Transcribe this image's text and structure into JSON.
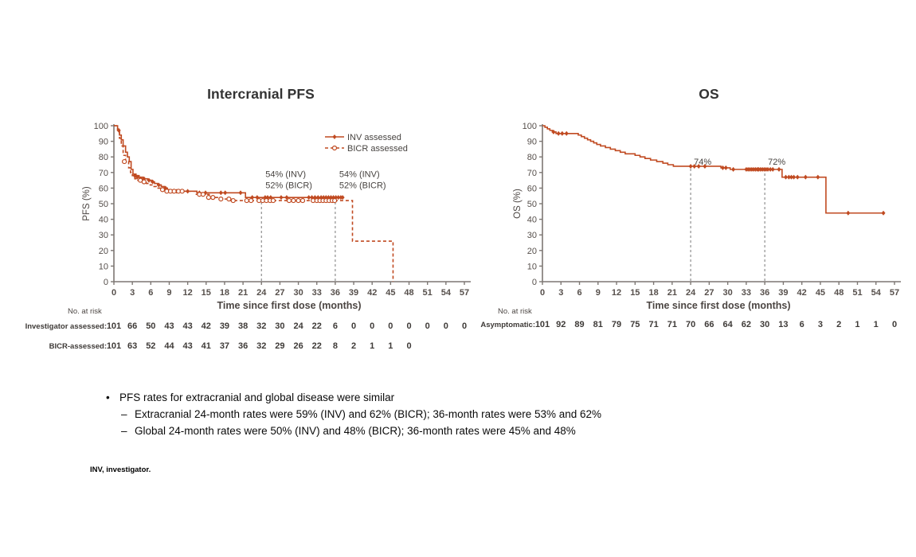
{
  "colors": {
    "curve": "#c04a21",
    "axis": "#7d7773",
    "tick_text": "#564f4b",
    "label_text": "#4c4643",
    "title_text": "#333333",
    "annotation_text": "#474340",
    "refline": "#8f8f8f",
    "risk_text": "#3e3a37",
    "note_text": "#0a0a0a"
  },
  "chart_data": [
    {
      "id": "pfs",
      "type": "line",
      "subtype": "kaplan-meier-step",
      "title": "Intercranial PFS",
      "xlabel": "Time since first dose (months)",
      "ylabel": "PFS (%)",
      "xmax": 57,
      "ylim": [
        0,
        100
      ],
      "grid": false,
      "xticks": [
        0,
        3,
        6,
        9,
        12,
        15,
        18,
        21,
        24,
        27,
        30,
        33,
        36,
        39,
        42,
        45,
        48,
        51,
        54,
        57
      ],
      "yticks": [
        0,
        10,
        20,
        30,
        40,
        50,
        60,
        70,
        80,
        90,
        100
      ],
      "reflines": [
        {
          "x": 24,
          "top_pct": 53
        },
        {
          "x": 36,
          "top_pct": 53
        }
      ],
      "annotations": [
        {
          "x": 24,
          "dx": 5,
          "y_pct": 67,
          "lines": [
            "54% (INV)",
            "52% (BICR)"
          ]
        },
        {
          "x": 36,
          "dx": 5,
          "y_pct": 67,
          "lines": [
            "54% (INV)",
            "52% (BICR)"
          ]
        }
      ],
      "legend": {
        "show": true,
        "position": "top-right"
      },
      "series": [
        {
          "name": "INV assessed",
          "line": "solid",
          "marker": "diamond",
          "end": 37.2,
          "steps": [
            [
              0,
              100
            ],
            [
              0.6,
              97
            ],
            [
              0.9,
              94
            ],
            [
              1.2,
              91
            ],
            [
              1.5,
              87
            ],
            [
              1.9,
              83
            ],
            [
              2.2,
              80
            ],
            [
              2.5,
              77
            ],
            [
              2.8,
              72
            ],
            [
              3.1,
              69
            ],
            [
              3.6,
              68
            ],
            [
              4.1,
              67
            ],
            [
              4.7,
              66
            ],
            [
              5.5,
              65
            ],
            [
              6.1,
              64
            ],
            [
              6.6,
              63
            ],
            [
              7.1,
              62
            ],
            [
              7.7,
              61
            ],
            [
              8.2,
              60
            ],
            [
              8.7,
              59
            ],
            [
              9.3,
              58
            ],
            [
              13.5,
              57
            ],
            [
              21.4,
              54
            ]
          ],
          "censors": [
            [
              0.8,
              97
            ],
            [
              3.4,
              68
            ],
            [
              3.8,
              67
            ],
            [
              4.3,
              66
            ],
            [
              4.9,
              66
            ],
            [
              5.7,
              65
            ],
            [
              6.3,
              64
            ],
            [
              7.3,
              62
            ],
            [
              8.4,
              60
            ],
            [
              9.6,
              58
            ],
            [
              10.2,
              58
            ],
            [
              12.0,
              58
            ],
            [
              13.9,
              57
            ],
            [
              14.9,
              57
            ],
            [
              17.4,
              57
            ],
            [
              18.1,
              57
            ],
            [
              20.6,
              57
            ],
            [
              22.5,
              54
            ],
            [
              23.3,
              54
            ],
            [
              24.6,
              54
            ],
            [
              25.0,
              54
            ],
            [
              25.5,
              54
            ],
            [
              27.2,
              54
            ],
            [
              28.1,
              54
            ],
            [
              31.7,
              54
            ],
            [
              32.2,
              54
            ],
            [
              32.7,
              54
            ],
            [
              33.2,
              54
            ],
            [
              33.7,
              54
            ],
            [
              34.1,
              54
            ],
            [
              34.5,
              54
            ],
            [
              34.9,
              54
            ],
            [
              35.3,
              54
            ],
            [
              35.7,
              54
            ],
            [
              36.1,
              54
            ],
            [
              36.5,
              54
            ],
            [
              36.9,
              54
            ],
            [
              37.2,
              54
            ]
          ]
        },
        {
          "name": "BICR assessed",
          "line": "dashed",
          "marker": "circle",
          "end": 45.4,
          "steps": [
            [
              0,
              100
            ],
            [
              0.6,
              96
            ],
            [
              0.9,
              92
            ],
            [
              1.2,
              87
            ],
            [
              1.5,
              81
            ],
            [
              1.9,
              77
            ],
            [
              2.4,
              73
            ],
            [
              2.7,
              70
            ],
            [
              3.0,
              68
            ],
            [
              3.4,
              66
            ],
            [
              3.9,
              65
            ],
            [
              4.6,
              64
            ],
            [
              5.3,
              63
            ],
            [
              5.9,
              62
            ],
            [
              6.4,
              61
            ],
            [
              6.9,
              60
            ],
            [
              7.5,
              59
            ],
            [
              8.2,
              58
            ],
            [
              13.4,
              56
            ],
            [
              15.5,
              54
            ],
            [
              17.0,
              53
            ],
            [
              19.0,
              52
            ],
            [
              38.8,
              26
            ],
            [
              45.4,
              0
            ]
          ],
          "censors": [
            [
              1.7,
              77
            ],
            [
              4.3,
              65
            ],
            [
              4.9,
              64
            ],
            [
              7.9,
              59
            ],
            [
              8.6,
              58
            ],
            [
              9.2,
              58
            ],
            [
              9.8,
              58
            ],
            [
              10.5,
              58
            ],
            [
              11.1,
              58
            ],
            [
              13.9,
              56
            ],
            [
              14.5,
              56
            ],
            [
              15.4,
              54
            ],
            [
              16.1,
              54
            ],
            [
              17.4,
              53
            ],
            [
              18.7,
              53
            ],
            [
              19.4,
              52
            ],
            [
              21.6,
              52
            ],
            [
              22.3,
              52
            ],
            [
              23.6,
              52
            ],
            [
              24.2,
              52
            ],
            [
              24.8,
              52
            ],
            [
              25.4,
              52
            ],
            [
              25.9,
              52
            ],
            [
              28.5,
              52
            ],
            [
              29.2,
              52
            ],
            [
              30.0,
              52
            ],
            [
              30.7,
              52
            ],
            [
              32.4,
              52
            ],
            [
              33.0,
              52
            ],
            [
              33.5,
              52
            ],
            [
              34.0,
              52
            ],
            [
              34.5,
              52
            ],
            [
              35.0,
              52
            ],
            [
              35.5,
              52
            ],
            [
              35.9,
              52
            ]
          ]
        }
      ],
      "risk_table": {
        "heading": "No. at risk",
        "rows": [
          {
            "label": "Investigator assessed:",
            "values": [
              101,
              66,
              50,
              43,
              43,
              42,
              39,
              38,
              32,
              30,
              24,
              22,
              6,
              0,
              0,
              0,
              0,
              0,
              0,
              0
            ]
          },
          {
            "label": "BICR-assessed:",
            "values": [
              101,
              63,
              52,
              44,
              43,
              41,
              37,
              36,
              32,
              29,
              26,
              22,
              8,
              2,
              1,
              1,
              0
            ]
          }
        ]
      }
    },
    {
      "id": "os",
      "type": "line",
      "subtype": "kaplan-meier-step",
      "title": "OS",
      "xlabel": "Time since first dose (months)",
      "ylabel": "OS (%)",
      "xmax": 57,
      "ylim": [
        0,
        100
      ],
      "grid": false,
      "xticks": [
        0,
        3,
        6,
        9,
        12,
        15,
        18,
        21,
        24,
        27,
        30,
        33,
        36,
        39,
        42,
        45,
        48,
        51,
        54,
        57
      ],
      "yticks": [
        0,
        10,
        20,
        30,
        40,
        50,
        60,
        70,
        80,
        90,
        100
      ],
      "reflines": [
        {
          "x": 24,
          "top_pct": 74
        },
        {
          "x": 36,
          "top_pct": 72
        }
      ],
      "annotations": [
        {
          "x": 24,
          "dx": 4,
          "y_pct": 75,
          "lines": [
            "74%"
          ]
        },
        {
          "x": 36,
          "dx": 4,
          "y_pct": 75,
          "lines": [
            "72%"
          ]
        }
      ],
      "legend": {
        "show": false,
        "position": null
      },
      "series": [
        {
          "name": "Asymptomatic",
          "line": "solid",
          "marker": "diamond",
          "end": 55.4,
          "steps": [
            [
              0,
              100
            ],
            [
              0.4,
              99
            ],
            [
              0.8,
              98
            ],
            [
              1.2,
              97
            ],
            [
              1.6,
              96
            ],
            [
              2.2,
              95
            ],
            [
              5.8,
              94
            ],
            [
              6.3,
              93
            ],
            [
              6.8,
              92
            ],
            [
              7.3,
              91
            ],
            [
              7.8,
              90
            ],
            [
              8.3,
              89
            ],
            [
              8.8,
              88
            ],
            [
              9.4,
              87
            ],
            [
              10.2,
              86
            ],
            [
              11.0,
              85
            ],
            [
              11.8,
              84
            ],
            [
              12.6,
              83
            ],
            [
              13.4,
              82
            ],
            [
              15.0,
              81
            ],
            [
              15.8,
              80
            ],
            [
              16.6,
              79
            ],
            [
              17.5,
              78
            ],
            [
              18.5,
              77
            ],
            [
              19.5,
              76
            ],
            [
              20.3,
              75
            ],
            [
              21.2,
              74
            ],
            [
              28.9,
              73
            ],
            [
              30.4,
              72
            ],
            [
              38.8,
              67
            ],
            [
              45.9,
              44
            ]
          ],
          "censors": [
            [
              1.8,
              96
            ],
            [
              2.6,
              95
            ],
            [
              3.2,
              95
            ],
            [
              3.9,
              95
            ],
            [
              24.0,
              74
            ],
            [
              24.6,
              74
            ],
            [
              25.3,
              74
            ],
            [
              26.3,
              74
            ],
            [
              29.2,
              73
            ],
            [
              29.7,
              73
            ],
            [
              30.9,
              72
            ],
            [
              33.0,
              72
            ],
            [
              33.3,
              72
            ],
            [
              33.6,
              72
            ],
            [
              33.9,
              72
            ],
            [
              34.2,
              72
            ],
            [
              34.5,
              72
            ],
            [
              34.8,
              72
            ],
            [
              35.0,
              72
            ],
            [
              35.3,
              72
            ],
            [
              35.6,
              72
            ],
            [
              35.9,
              72
            ],
            [
              36.2,
              72
            ],
            [
              36.5,
              72
            ],
            [
              36.9,
              72
            ],
            [
              37.3,
              72
            ],
            [
              38.3,
              72
            ],
            [
              39.4,
              67
            ],
            [
              39.9,
              67
            ],
            [
              40.3,
              67
            ],
            [
              40.7,
              67
            ],
            [
              41.3,
              67
            ],
            [
              42.6,
              67
            ],
            [
              44.6,
              67
            ],
            [
              49.5,
              44
            ],
            [
              55.2,
              44
            ]
          ]
        }
      ],
      "risk_table": {
        "heading": "No. at risk",
        "rows": [
          {
            "label": "Asymptomatic:",
            "values": [
              101,
              92,
              89,
              81,
              79,
              75,
              71,
              71,
              70,
              66,
              64,
              62,
              30,
              13,
              6,
              3,
              2,
              1,
              1,
              0
            ]
          }
        ]
      }
    }
  ],
  "notes": {
    "bullet": {
      "marker": "•",
      "text": "PFS rates for extracranial and global disease were similar"
    },
    "sub_bullets": [
      {
        "marker": "–",
        "text": "Extracranial 24-month rates were 59% (INV) and 62% (BICR); 36-month rates were 53% and 62%"
      },
      {
        "marker": "–",
        "text": "Global 24-month rates were 50% (INV) and 48% (BICR); 36-month rates were 45% and 48%"
      }
    ],
    "footnote": "INV, investigator."
  }
}
